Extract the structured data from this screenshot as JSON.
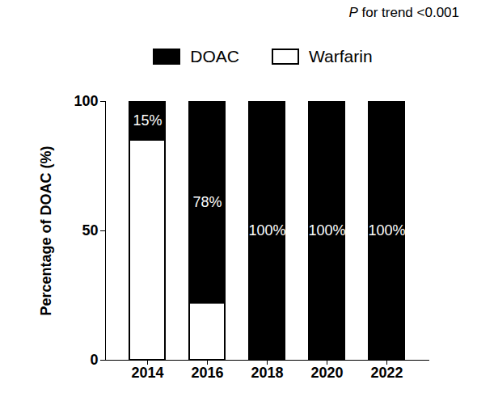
{
  "chart_data": {
    "type": "bar",
    "stacked": true,
    "data_labels": true,
    "legend": "top",
    "annotation": "P for trend <0.001",
    "ylabel": "Percentage of DOAC (%)",
    "categories": [
      "2014",
      "2016",
      "2018",
      "2020",
      "2022"
    ],
    "series": [
      {
        "name": "DOAC",
        "color": "#000000",
        "values": [
          15,
          78,
          100,
          100,
          100
        ],
        "value_labels": [
          "15%",
          "78%",
          "100%",
          "100%",
          "100%"
        ]
      },
      {
        "name": "Warfarin",
        "color": "#ffffff",
        "values": [
          85,
          22,
          0,
          0,
          0
        ]
      }
    ],
    "ylim": [
      0,
      100
    ],
    "yticks": [
      0,
      50,
      100
    ]
  }
}
